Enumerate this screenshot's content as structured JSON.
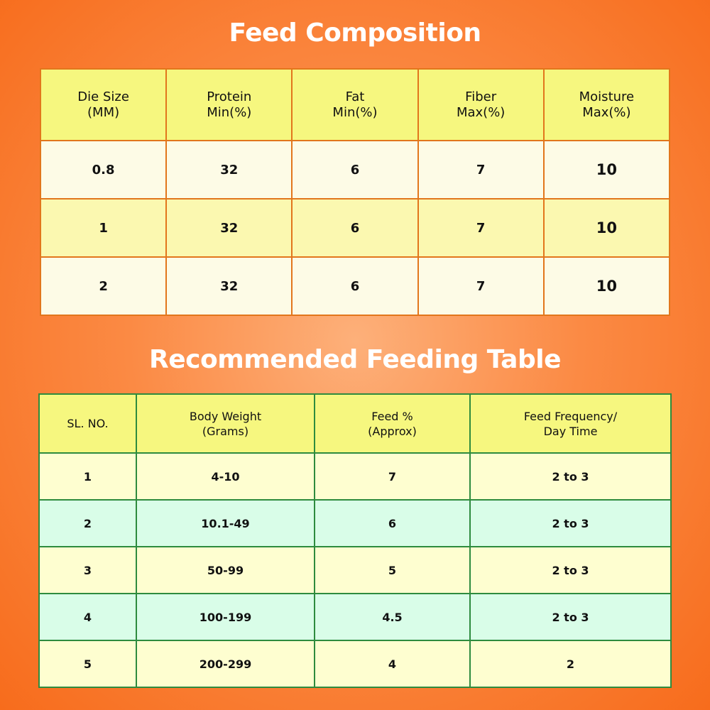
{
  "feed_composition": {
    "title": "Feed Composition",
    "headers": [
      [
        "Die Size",
        "(MM)"
      ],
      [
        "Protein",
        "Min(%)"
      ],
      [
        "Fat",
        "Min(%)"
      ],
      [
        "Fiber",
        "Max(%)"
      ],
      [
        "Moisture",
        "Max(%)"
      ]
    ],
    "rows": [
      [
        "0.8",
        "32",
        "6",
        "7",
        "10"
      ],
      [
        "1",
        "32",
        "6",
        "7",
        "10"
      ],
      [
        "2",
        "32",
        "6",
        "7",
        "10"
      ]
    ]
  },
  "feeding_table": {
    "title": "Recommended Feeding Table",
    "headers": [
      [
        "SL. NO.",
        ""
      ],
      [
        "Body Weight",
        "(Grams)"
      ],
      [
        "Feed %",
        "(Approx)"
      ],
      [
        "Feed Frequency/",
        "Day Time"
      ]
    ],
    "rows": [
      [
        "1",
        "4-10",
        "7",
        "2 to 3"
      ],
      [
        "2",
        "10.1-49",
        "6",
        "2 to 3"
      ],
      [
        "3",
        "50-99",
        "5",
        "2 to 3"
      ],
      [
        "4",
        "100-199",
        "4.5",
        "2 to 3"
      ],
      [
        "5",
        "200-299",
        "4",
        "2"
      ]
    ]
  },
  "colors": {
    "background": "#f97a2c",
    "composition_border": "#e2761c",
    "feeding_border": "#2e8b3e",
    "header_fill": "#f6f77f",
    "row_cream": "#fdfbe6",
    "row_yellow": "#fbf8b0",
    "row_mint": "#d9fde8"
  }
}
